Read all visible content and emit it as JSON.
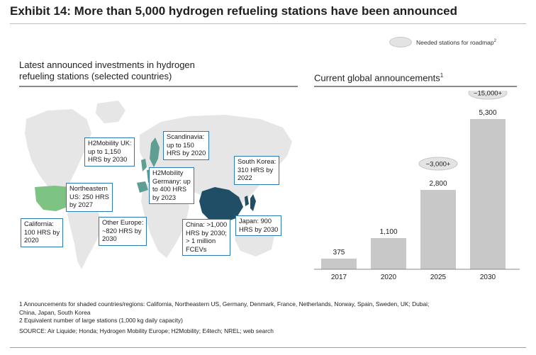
{
  "title": "Exhibit 14: More than 5,000 hydrogen refueling stations have been announced",
  "legend": {
    "label": "Needed stations for roadmap",
    "sup": "2",
    "color": "#e3e3e3"
  },
  "left_panel": {
    "title_line1": "Latest announced investments in hydrogen",
    "title_line2": "refueling stations (selected countries)",
    "colors": {
      "map_base": "#e6e6e6",
      "california_highlight": "#7dc383",
      "europe_highlight": "#5f9e93",
      "china_highlight": "#1f4e66",
      "callout_border": "#2d7bb6"
    },
    "callouts": [
      {
        "id": "h2mobility-uk",
        "text": "H2Mobility UK:\nup to 1,150\nHRS by 2030"
      },
      {
        "id": "scandinavia",
        "text": "Scandinavia:\nup to 150\nHRS by 2020"
      },
      {
        "id": "south-korea",
        "text": "South Korea:\n310 HRS by\n2022"
      },
      {
        "id": "northeastern-us",
        "text": "Northeastern\nUS: 250 HRS\nby 2027"
      },
      {
        "id": "h2mobility-germany",
        "text": "H2Mobility\nGermany: up\nto 400 HRS\nby 2023"
      },
      {
        "id": "california",
        "text": "California:\n100 HRS by\n2020"
      },
      {
        "id": "other-europe",
        "text": "Other Europe:\n~820 HRS by\n2030"
      },
      {
        "id": "china",
        "text": "China: >1,000\nHRS by 2030;\n> 1 million\nFCEVs"
      },
      {
        "id": "japan",
        "text": "Japan: 900\nHRS by 2030"
      }
    ]
  },
  "right_panel": {
    "title": "Current global announcements",
    "title_sup": "1"
  },
  "chart_data": {
    "type": "bar",
    "title": "Current global announcements",
    "categories": [
      "2017",
      "2020",
      "2025",
      "2030"
    ],
    "values": [
      375,
      1100,
      2800,
      5300
    ],
    "value_labels": [
      "375",
      "1,100",
      "2,800",
      "5,300"
    ],
    "needed_stations": [
      {
        "category": "2025",
        "label": "~3,000+"
      },
      {
        "category": "2030",
        "label": "~15,000+"
      }
    ],
    "ylim": [
      0,
      5800
    ],
    "grid": false,
    "bar_color": "#c8c8c8",
    "legend": "top-right"
  },
  "footnotes": [
    "1 Announcements for shaded countries/regions: California, Northeastern US, Germany, Denmark, France, Netherlands, Norway, Spain, Sweden, UK; Dubai;",
    "China, Japan, South Korea",
    "2 Equivalent number of large stations (1,000 kg daily capacity)"
  ],
  "source": "SOURCE: Air Liquide; Honda; Hydrogen Mobility Europe; H2Mobility; E4tech; NREL; web search"
}
